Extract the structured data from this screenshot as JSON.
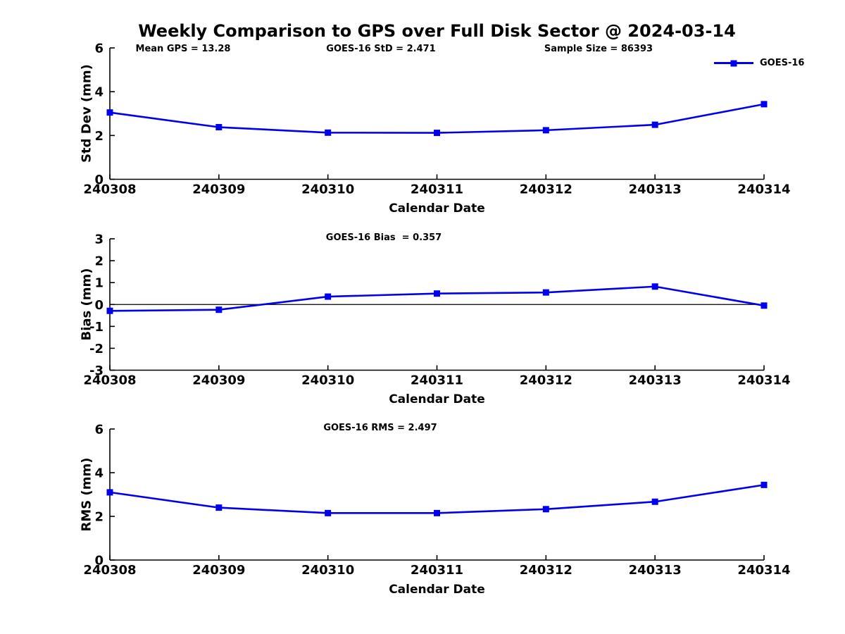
{
  "title": "Weekly Comparison to GPS over Full Disk Sector @ 2024-03-14",
  "legend": {
    "label": "GOES-16",
    "color": "#0000EE"
  },
  "colors": {
    "series_blue": "#0000EE",
    "axis": "#000000"
  },
  "chart_data": [
    {
      "type": "line",
      "name": "std-dev-plot",
      "annotations": [
        "Mean GPS = 13.28",
        "GOES-16 StD = 2.471",
        "Sample Size = 86393"
      ],
      "xlabel": "Calendar Date",
      "ylabel": "Std Dev (mm)",
      "categories": [
        "240308",
        "240309",
        "240310",
        "240311",
        "240312",
        "240313",
        "240314"
      ],
      "series": [
        {
          "name": "GOES-16",
          "color": "#0000EE",
          "marker": "square",
          "values": [
            3.05,
            2.38,
            2.13,
            2.12,
            2.24,
            2.49,
            3.43
          ]
        }
      ],
      "ylim": [
        0,
        6
      ],
      "yticks": [
        0,
        2,
        4,
        6
      ],
      "grid": false,
      "zero_line": false,
      "legend_position": "top-right"
    },
    {
      "type": "line",
      "name": "bias-plot",
      "annotations": [
        "GOES-16 Bias  = 0.357"
      ],
      "xlabel": "Calendar Date",
      "ylabel": "Bias (mm)",
      "categories": [
        "240308",
        "240309",
        "240310",
        "240311",
        "240312",
        "240313",
        "240314"
      ],
      "series": [
        {
          "name": "GOES-16",
          "color": "#0000EE",
          "marker": "square",
          "values": [
            -0.29,
            -0.24,
            0.36,
            0.5,
            0.55,
            0.82,
            -0.05
          ]
        }
      ],
      "ylim": [
        -3,
        3
      ],
      "yticks": [
        -3,
        -2,
        -1,
        0,
        1,
        2,
        3
      ],
      "grid": false,
      "zero_line": true,
      "legend_position": "none"
    },
    {
      "type": "line",
      "name": "rms-plot",
      "annotations": [
        "GOES-16 RMS = 2.497"
      ],
      "xlabel": "Calendar Date",
      "ylabel": "RMS (mm)",
      "categories": [
        "240308",
        "240309",
        "240310",
        "240311",
        "240312",
        "240313",
        "240314"
      ],
      "series": [
        {
          "name": "GOES-16",
          "color": "#0000EE",
          "marker": "square",
          "values": [
            3.1,
            2.4,
            2.15,
            2.15,
            2.33,
            2.67,
            3.44
          ]
        }
      ],
      "ylim": [
        0,
        6
      ],
      "yticks": [
        0,
        2,
        4,
        6
      ],
      "grid": false,
      "zero_line": false,
      "legend_position": "none"
    }
  ]
}
